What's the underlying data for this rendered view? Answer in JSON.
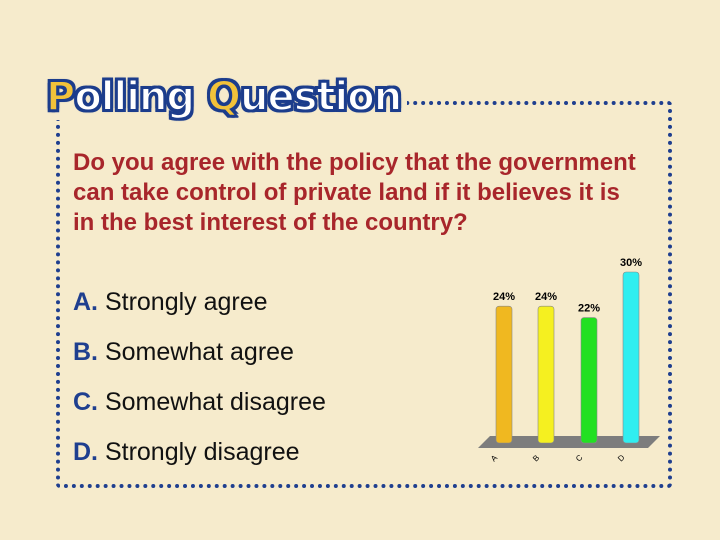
{
  "title": {
    "first_cap": "P",
    "first_rest": "olling ",
    "second_cap": "Q",
    "second_rest": "uestion"
  },
  "question": "Do you agree with the policy that the government can take control of private land if it believes it is in the best interest of the country?",
  "answers": [
    {
      "letter": "A.",
      "text": "Strongly agree"
    },
    {
      "letter": "B.",
      "text": "Somewhat agree"
    },
    {
      "letter": "C.",
      "text": "Somewhat disagree"
    },
    {
      "letter": "D.",
      "text": "Strongly disagree"
    }
  ],
  "chart_data": {
    "type": "bar",
    "categories": [
      "A",
      "B",
      "C",
      "D"
    ],
    "values": [
      24,
      24,
      22,
      30
    ],
    "data_labels": [
      "24%",
      "24%",
      "22%",
      "30%"
    ],
    "colors": [
      "#f0b820",
      "#f5f020",
      "#22e022",
      "#30eef0"
    ],
    "ylim": [
      0,
      30
    ]
  }
}
